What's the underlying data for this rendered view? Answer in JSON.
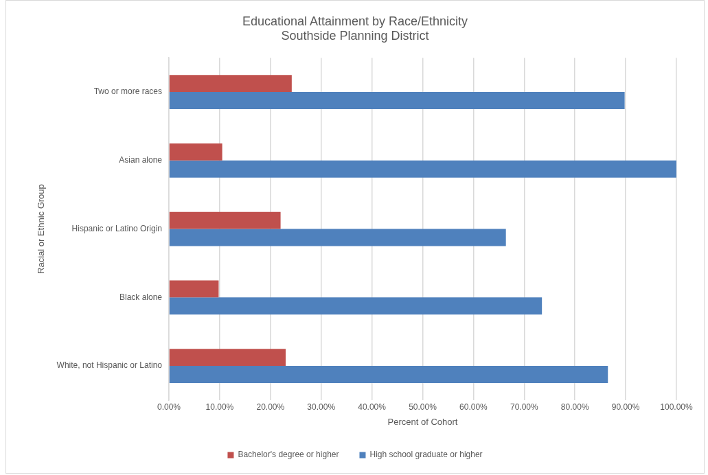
{
  "chart_data": {
    "type": "bar",
    "orientation": "horizontal",
    "title": "Educational Attainment by Race/Ethnicity",
    "subtitle": "Southside Planning District",
    "xlabel": "Percent of Cohort",
    "ylabel": "Racial or Ethnic Group",
    "categories": [
      "Two or more races",
      "Asian alone",
      "Hispanic or Latino Origin",
      "Black alone",
      "White, not Hispanic or Latino"
    ],
    "series": [
      {
        "name": "Bachelor's degree or higher",
        "color": "#c0504d",
        "values": [
          24.2,
          10.5,
          22.0,
          9.8,
          23.0
        ]
      },
      {
        "name": "High school graduate or higher",
        "color": "#4f81bd",
        "values": [
          89.8,
          100,
          66.4,
          73.5,
          86.5
        ]
      }
    ],
    "xlim": [
      0,
      100
    ],
    "xticks": [
      {
        "value": 0,
        "label": "0.00%"
      },
      {
        "value": 10,
        "label": "10.00%"
      },
      {
        "value": 20,
        "label": "20.00%"
      },
      {
        "value": 30,
        "label": "30.00%"
      },
      {
        "value": 40,
        "label": "40.00%"
      },
      {
        "value": 50,
        "label": "50.00%"
      },
      {
        "value": 60,
        "label": "60.00%"
      },
      {
        "value": 70,
        "label": "70.00%"
      },
      {
        "value": 80,
        "label": "80.00%"
      },
      {
        "value": 90,
        "label": "90.00%"
      },
      {
        "value": 100,
        "label": "100.00%"
      }
    ],
    "grid": "x",
    "legend": "bottom"
  }
}
